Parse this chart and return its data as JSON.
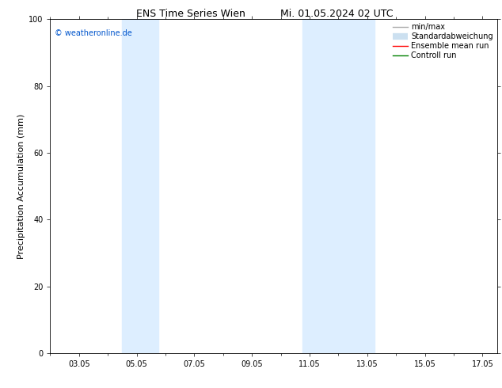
{
  "title_left": "ENS Time Series Wien",
  "title_right": "Mi. 01.05.2024 02 UTC",
  "ylabel": "Precipitation Accumulation (mm)",
  "ylim": [
    0,
    100
  ],
  "yticks": [
    0,
    20,
    40,
    60,
    80,
    100
  ],
  "xtick_labels": [
    "03.05",
    "05.05",
    "07.05",
    "09.05",
    "11.05",
    "13.05",
    "15.05",
    "17.05"
  ],
  "xtick_positions": [
    3,
    5,
    7,
    9,
    11,
    13,
    15,
    17
  ],
  "xlim": [
    2.0,
    17.5
  ],
  "shaded_regions": [
    {
      "xmin": 4.5,
      "xmax": 5.75,
      "color": "#ddeeff"
    },
    {
      "xmin": 10.75,
      "xmax": 13.25,
      "color": "#ddeeff"
    }
  ],
  "watermark_text": "© weatheronline.de",
  "watermark_color": "#0055cc",
  "background_color": "#ffffff",
  "legend_items": [
    {
      "label": "min/max",
      "color": "#aaaaaa",
      "lw": 1.0
    },
    {
      "label": "Standardabweichung",
      "color": "#cce0f0",
      "lw": 6.0
    },
    {
      "label": "Ensemble mean run",
      "color": "#ff0000",
      "lw": 1.0
    },
    {
      "label": "Controll run",
      "color": "#008000",
      "lw": 1.0
    }
  ],
  "title_fontsize": 9,
  "axis_label_fontsize": 8,
  "tick_fontsize": 7,
  "watermark_fontsize": 7,
  "legend_fontsize": 7
}
